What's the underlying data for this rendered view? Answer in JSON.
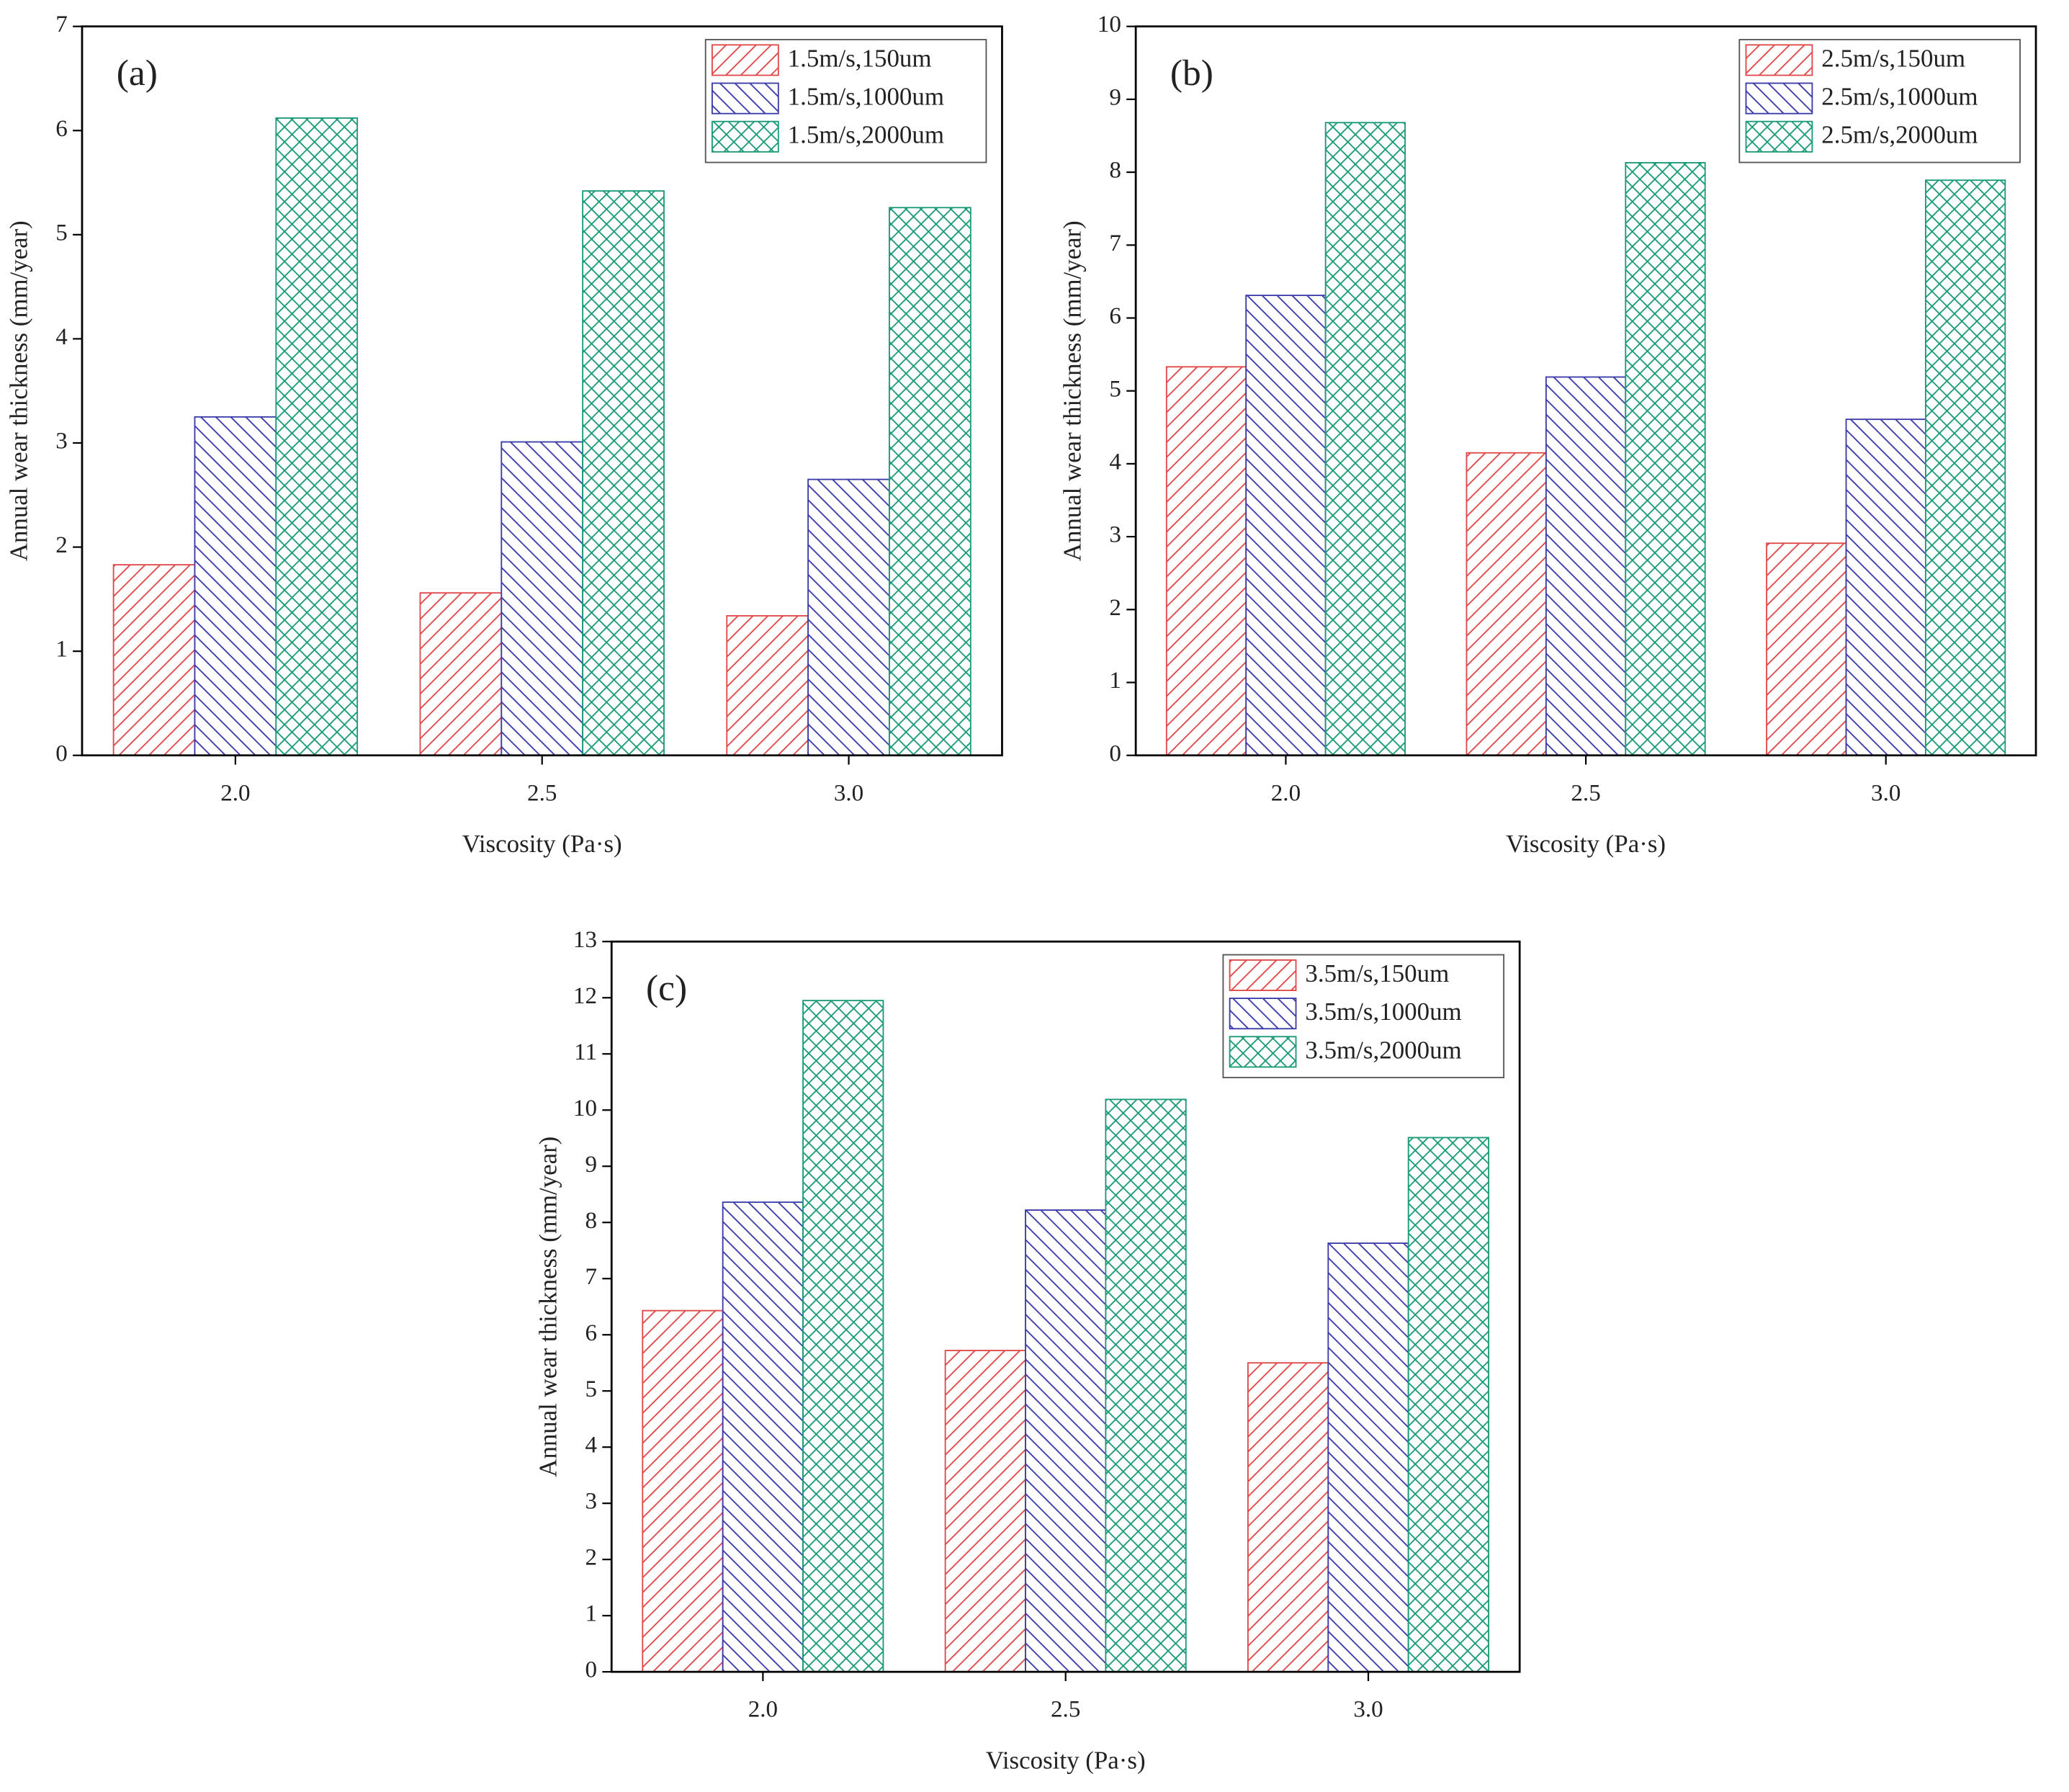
{
  "chart_data": [
    {
      "type": "bar",
      "panel_label": "(a)",
      "x_label": "Viscosity (Pa·s)",
      "y_label": "Annual wear thickness (mm/year)",
      "categories": [
        "2.0",
        "2.5",
        "3.0"
      ],
      "series": [
        {
          "name": "1.5m/s,150um",
          "color": "#e04848",
          "hatch": "/",
          "values": [
            1.83,
            1.56,
            1.34
          ]
        },
        {
          "name": "1.5m/s,1000um",
          "color": "#3a3aa8",
          "hatch": "\\",
          "values": [
            3.25,
            3.01,
            2.65
          ]
        },
        {
          "name": "1.5m/s,2000um",
          "color": "#1a9a78",
          "hatch": "x",
          "values": [
            6.12,
            5.42,
            5.26
          ]
        }
      ],
      "ylim": [
        0,
        7
      ],
      "yticks": [
        0,
        1,
        2,
        3,
        4,
        5,
        6,
        7
      ],
      "legend": "top-right"
    },
    {
      "type": "bar",
      "panel_label": "(b)",
      "x_label": "Viscosity (Pa·s)",
      "y_label": "Annual wear thickness (mm/year)",
      "categories": [
        "2.0",
        "2.5",
        "3.0"
      ],
      "series": [
        {
          "name": "2.5m/s,150um",
          "color": "#e04848",
          "hatch": "/",
          "values": [
            5.33,
            4.15,
            2.91
          ]
        },
        {
          "name": "2.5m/s,1000um",
          "color": "#3a3aa8",
          "hatch": "\\",
          "values": [
            6.31,
            5.19,
            4.61
          ]
        },
        {
          "name": "2.5m/s,2000um",
          "color": "#1a9a78",
          "hatch": "x",
          "values": [
            8.68,
            8.13,
            7.89
          ]
        }
      ],
      "ylim": [
        0,
        10
      ],
      "yticks": [
        0,
        1,
        2,
        3,
        4,
        5,
        6,
        7,
        8,
        9,
        10
      ],
      "legend": "top-right"
    },
    {
      "type": "bar",
      "panel_label": "(c)",
      "x_label": "Viscosity (Pa·s)",
      "y_label": "Annual wear thickness (mm/year)",
      "categories": [
        "2.0",
        "2.5",
        "3.0"
      ],
      "series": [
        {
          "name": "3.5m/s,150um",
          "color": "#e04848",
          "hatch": "/",
          "values": [
            6.43,
            5.72,
            5.5
          ]
        },
        {
          "name": "3.5m/s,1000um",
          "color": "#3a3aa8",
          "hatch": "\\",
          "values": [
            8.36,
            8.22,
            7.63
          ]
        },
        {
          "name": "3.5m/s,2000um",
          "color": "#1a9a78",
          "hatch": "x",
          "values": [
            11.95,
            10.19,
            9.51
          ]
        }
      ],
      "ylim": [
        0,
        13
      ],
      "yticks": [
        0,
        1,
        2,
        3,
        4,
        5,
        6,
        7,
        8,
        9,
        10,
        11,
        12,
        13
      ],
      "legend": "top-right"
    }
  ]
}
